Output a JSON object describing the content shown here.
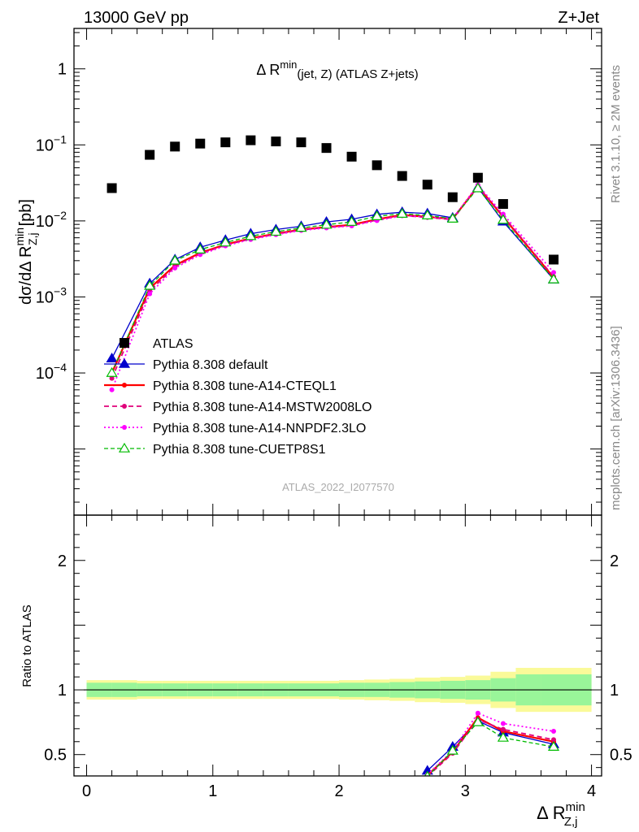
{
  "header": {
    "left": "13000 GeV pp",
    "right": "Z+Jet"
  },
  "side_text": {
    "rivet": "Rivet 3.1.10, ≥ 2M events",
    "mcplots": "mcplots.cern.ch [arXiv:1306.3436]"
  },
  "watermark": "ATLAS_2022_I2077570",
  "colors": {
    "ATLAS": "#000000",
    "default": "#0000cc",
    "cteql1": "#ff0000",
    "mstw": "#e0007a",
    "nnpdf": "#ff00ff",
    "cuetp8s1": "#00bb00",
    "band_inner": "#99f599",
    "band_outer": "#fafa99"
  },
  "chart_data": [
    {
      "type": "scatter",
      "title": "Δ R^min(jet, Z) (ATLAS Z+jets)",
      "title_main": "Δ R",
      "title_sup": "min",
      "title_sub": "(jet, Z) (ATLAS Z+jets)",
      "ylabel": "dσ/dΔ R^min_Z,j [pb]",
      "ylabel_parts": {
        "a": "dσ/dΔ R",
        "sup": "min",
        "sub": "Z,j",
        "b": "[pb]"
      },
      "yscale": "log",
      "xlim": [
        -0.1,
        4.08
      ],
      "ylim": [
        1.35e-06,
        3.4
      ],
      "y_ticks": [
        {
          "v": 1,
          "m": "1",
          "e": ""
        },
        {
          "v": 0.1,
          "m": "10",
          "e": "−1"
        },
        {
          "v": 0.01,
          "m": "10",
          "e": "−2"
        },
        {
          "v": 0.001,
          "m": "10",
          "e": "−3"
        },
        {
          "v": 0.0001,
          "m": "10",
          "e": "−4"
        }
      ],
      "legend_position": "bottom-left",
      "series": [
        {
          "key": "ATLAS",
          "name": "ATLAS",
          "x": [
            0.2,
            0.5,
            0.7,
            0.9,
            1.1,
            1.3,
            1.5,
            1.7,
            1.9,
            2.1,
            2.3,
            2.5,
            2.7,
            2.9,
            3.1,
            3.3,
            3.7
          ],
          "values": [
            0.027,
            0.074,
            0.095,
            0.104,
            0.108,
            0.115,
            0.111,
            0.108,
            0.091,
            0.07,
            0.054,
            0.039,
            0.03,
            0.0205,
            0.037,
            0.0167,
            0.0031
          ]
        },
        {
          "key": "default",
          "name": "Pythia 8.308 default",
          "x": [
            0.2,
            0.5,
            0.7,
            0.9,
            1.1,
            1.3,
            1.5,
            1.7,
            1.9,
            2.1,
            2.3,
            2.5,
            2.7,
            2.9,
            3.1,
            3.3,
            3.7
          ],
          "values": [
            0.000155,
            0.0015,
            0.0031,
            0.0045,
            0.0056,
            0.0068,
            0.0077,
            0.0085,
            0.0097,
            0.0105,
            0.0122,
            0.013,
            0.0125,
            0.011,
            0.0275,
            0.0098,
            0.0017
          ]
        },
        {
          "key": "cteql1",
          "name": "Pythia 8.308 tune-A14-CTEQL1",
          "x": [
            0.2,
            0.5,
            0.7,
            0.9,
            1.1,
            1.3,
            1.5,
            1.7,
            1.9,
            2.1,
            2.3,
            2.5,
            2.7,
            2.9,
            3.1,
            3.3,
            3.7
          ],
          "values": [
            0.0001,
            0.0013,
            0.0026,
            0.0038,
            0.0049,
            0.0059,
            0.0068,
            0.0077,
            0.0083,
            0.0089,
            0.0105,
            0.012,
            0.0113,
            0.0106,
            0.0285,
            0.0113,
            0.0018
          ]
        },
        {
          "key": "mstw",
          "name": "Pythia 8.308 tune-A14-MSTW2008LO",
          "x": [
            0.2,
            0.5,
            0.7,
            0.9,
            1.1,
            1.3,
            1.5,
            1.7,
            1.9,
            2.1,
            2.3,
            2.5,
            2.7,
            2.9,
            3.1,
            3.3,
            3.7
          ],
          "values": [
            8.5e-05,
            0.0012,
            0.0025,
            0.0037,
            0.0048,
            0.0058,
            0.0067,
            0.0076,
            0.0082,
            0.0087,
            0.0103,
            0.0118,
            0.0111,
            0.0104,
            0.0283,
            0.0116,
            0.00185
          ]
        },
        {
          "key": "nnpdf",
          "name": "Pythia 8.308 tune-A14-NNPDF2.3LO",
          "x": [
            0.2,
            0.5,
            0.7,
            0.9,
            1.1,
            1.3,
            1.5,
            1.7,
            1.9,
            2.1,
            2.3,
            2.5,
            2.7,
            2.9,
            3.1,
            3.3,
            3.7
          ],
          "values": [
            6e-05,
            0.0011,
            0.0024,
            0.0036,
            0.0047,
            0.0057,
            0.0066,
            0.0075,
            0.0081,
            0.0086,
            0.0101,
            0.0117,
            0.0113,
            0.0107,
            0.0297,
            0.0123,
            0.0021
          ]
        },
        {
          "key": "cuetp8s1",
          "name": "Pythia 8.308 tune-CUETP8S1",
          "x": [
            0.2,
            0.5,
            0.7,
            0.9,
            1.1,
            1.3,
            1.5,
            1.7,
            1.9,
            2.1,
            2.3,
            2.5,
            2.7,
            2.9,
            3.1,
            3.3,
            3.7
          ],
          "values": [
            0.0001,
            0.0014,
            0.003,
            0.0042,
            0.0052,
            0.0063,
            0.0072,
            0.0081,
            0.0089,
            0.0097,
            0.0115,
            0.0124,
            0.0118,
            0.0107,
            0.0268,
            0.0103,
            0.0017
          ]
        }
      ]
    },
    {
      "type": "line",
      "ylabel": "Ratio to ATLAS",
      "xlabel": "Δ R^min_Z,j",
      "xlabel_parts": {
        "a": "Δ R",
        "sup": "min",
        "sub": "Z,j"
      },
      "xlim": [
        -0.1,
        4.08
      ],
      "ylim": [
        0.335,
        2.35
      ],
      "x_ticks": [
        0,
        1,
        2,
        3,
        4
      ],
      "y_ticks": [
        0.5,
        1,
        2
      ],
      "bands": {
        "edges": [
          0.0,
          0.2,
          0.4,
          0.6,
          0.8,
          1.0,
          1.2,
          1.4,
          1.6,
          1.8,
          2.0,
          2.2,
          2.4,
          2.6,
          2.8,
          3.0,
          3.2,
          3.4,
          3.6,
          4.0
        ],
        "inner": [
          0.055,
          0.055,
          0.05,
          0.05,
          0.05,
          0.05,
          0.05,
          0.05,
          0.05,
          0.05,
          0.055,
          0.055,
          0.06,
          0.065,
          0.07,
          0.075,
          0.09,
          0.12,
          0.12
        ],
        "outer": [
          0.075,
          0.075,
          0.07,
          0.07,
          0.07,
          0.07,
          0.07,
          0.07,
          0.07,
          0.07,
          0.075,
          0.08,
          0.085,
          0.095,
          0.1,
          0.11,
          0.14,
          0.17,
          0.17
        ]
      },
      "series": [
        {
          "key": "default",
          "name": "Pythia 8.308 default",
          "x": [
            2.7,
            2.9,
            3.1,
            3.3,
            3.7
          ],
          "values": [
            0.375,
            0.56,
            0.76,
            0.67,
            0.58
          ]
        },
        {
          "key": "cteql1",
          "name": "Pythia 8.308 tune-A14-CTEQL1",
          "x": [
            2.7,
            2.9,
            3.1,
            3.3,
            3.7
          ],
          "values": [
            0.34,
            0.52,
            0.785,
            0.68,
            0.6
          ]
        },
        {
          "key": "mstw",
          "name": "Pythia 8.308 tune-A14-MSTW2008LO",
          "x": [
            2.7,
            2.9,
            3.1,
            3.3,
            3.7
          ],
          "values": [
            0.33,
            0.51,
            0.77,
            0.695,
            0.615
          ]
        },
        {
          "key": "nnpdf",
          "name": "Pythia 8.308 tune-A14-NNPDF2.3LO",
          "x": [
            2.7,
            2.9,
            3.1,
            3.3,
            3.7
          ],
          "values": [
            0.345,
            0.53,
            0.82,
            0.74,
            0.68
          ]
        },
        {
          "key": "cuetp8s1",
          "name": "Pythia 8.308 tune-CUETP8S1",
          "x": [
            2.7,
            2.9,
            3.1,
            3.3,
            3.7
          ],
          "values": [
            0.33,
            0.53,
            0.75,
            0.63,
            0.56
          ]
        }
      ]
    }
  ]
}
